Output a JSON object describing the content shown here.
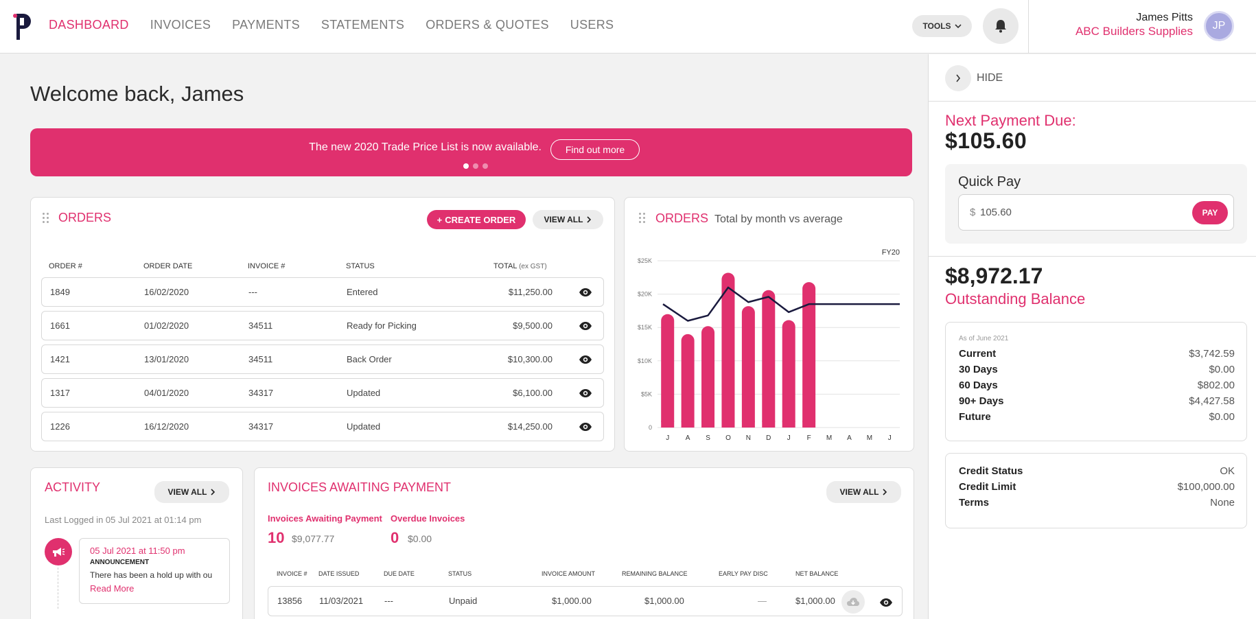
{
  "nav": {
    "items": [
      {
        "label": "DASHBOARD",
        "active": true
      },
      {
        "label": "INVOICES",
        "active": false
      },
      {
        "label": "PAYMENTS",
        "active": false
      },
      {
        "label": "STATEMENTS",
        "active": false
      },
      {
        "label": "ORDERS & QUOTES",
        "active": false
      },
      {
        "label": "USERS",
        "active": false
      }
    ],
    "tools_label": "TOOLS"
  },
  "user": {
    "name": "James Pitts",
    "company": "ABC Builders Supplies",
    "initials": "JP"
  },
  "welcome": "Welcome back, James",
  "banner": {
    "text": "The new 2020 Trade Price List is now available.",
    "button": "Find out more"
  },
  "orders": {
    "title": "ORDERS",
    "create_label": "CREATE ORDER",
    "view_all_label": "VIEW ALL",
    "columns": [
      "ORDER #",
      "ORDER DATE",
      "INVOICE #",
      "STATUS",
      "TOTAL",
      "(ex GST)"
    ],
    "rows": [
      {
        "order": "1849",
        "date": "16/02/2020",
        "invoice": "---",
        "status": "Entered",
        "total": "$11,250.00"
      },
      {
        "order": "1661",
        "date": "01/02/2020",
        "invoice": "34511",
        "status": "Ready for Picking",
        "total": "$9,500.00"
      },
      {
        "order": "1421",
        "date": "13/01/2020",
        "invoice": "34511",
        "status": "Back Order",
        "total": "$10,300.00"
      },
      {
        "order": "1317",
        "date": "04/01/2020",
        "invoice": "34317",
        "status": "Updated",
        "total": "$6,100.00"
      },
      {
        "order": "1226",
        "date": "16/12/2020",
        "invoice": "34317",
        "status": "Updated",
        "total": "$14,250.00"
      }
    ]
  },
  "orders_chart": {
    "title": "ORDERS",
    "subtitle": "Total by month vs average",
    "period": "FY20"
  },
  "chart_data": {
    "type": "bar",
    "title": "ORDERS",
    "subtitle": "Total by month vs average",
    "legend": "FY20",
    "categories": [
      "J",
      "A",
      "S",
      "O",
      "N",
      "D",
      "J",
      "F",
      "M",
      "A",
      "M",
      "J"
    ],
    "y_ticks": [
      "0",
      "$5K",
      "$10K",
      "$15K",
      "$20K",
      "$25K"
    ],
    "ylim": [
      0,
      25000
    ],
    "grid": true,
    "series": [
      {
        "values": [
          17000,
          14000,
          15200,
          23200,
          18200,
          20600,
          16100,
          21800,
          null,
          null,
          null,
          null
        ]
      },
      {
        "values": [
          18500,
          16000,
          16800,
          21000,
          18800,
          19600,
          17300,
          18500,
          18500,
          18500,
          18500,
          18500
        ]
      }
    ],
    "colors": {
      "bars": "#e0306e",
      "line": "#1a1a3e"
    }
  },
  "activity": {
    "title": "ACTIVITY",
    "view_all_label": "VIEW ALL",
    "last_logged": "Last Logged in 05 Jul 2021 at 01:14 pm",
    "items": [
      {
        "date": "05 Jul 2021 at 11:50 pm",
        "type": "ANNOUNCEMENT",
        "message": "There has been a hold up with ou",
        "link": "Read More"
      }
    ]
  },
  "invoices": {
    "title": "INVOICES AWAITING PAYMENT",
    "view_all_label": "VIEW ALL",
    "awaiting_label": "Invoices Awaiting Payment",
    "awaiting_count": "10",
    "awaiting_amount": "$9,077.77",
    "overdue_label": "Overdue Invoices",
    "overdue_count": "0",
    "overdue_amount": "$0.00",
    "columns": [
      "INVOICE #",
      "DATE ISSUED",
      "DUE DATE",
      "STATUS",
      "INVOICE AMOUNT",
      "REMAINING BALANCE",
      "EARLY PAY DISC",
      "NET BALANCE"
    ],
    "rows": [
      {
        "invoice": "13856",
        "issued": "11/03/2021",
        "due": "---",
        "status": "Unpaid",
        "amount": "$1,000.00",
        "remaining": "$1,000.00",
        "disc": "—",
        "net": "$1,000.00"
      }
    ]
  },
  "panel": {
    "hide_label": "HIDE",
    "next_payment_label": "Next Payment Due:",
    "next_payment_amount": "$105.60",
    "quick_pay_label": "Quick Pay",
    "quick_pay_currency": "$",
    "quick_pay_value": "105.60",
    "pay_label": "PAY",
    "outstanding_amount": "$8,972.17",
    "outstanding_label": "Outstanding Balance",
    "as_of": "As of June 2021",
    "aging": [
      {
        "label": "Current",
        "value": "$3,742.59"
      },
      {
        "label": "30 Days",
        "value": "$0.00"
      },
      {
        "label": "60 Days",
        "value": "$802.00"
      },
      {
        "label": "90+ Days",
        "value": "$4,427.58"
      },
      {
        "label": "Future",
        "value": "$0.00"
      }
    ],
    "credit": [
      {
        "label": "Credit Status",
        "value": "OK"
      },
      {
        "label": "Credit Limit",
        "value": "$100,000.00"
      },
      {
        "label": "Terms",
        "value": "None"
      }
    ]
  }
}
